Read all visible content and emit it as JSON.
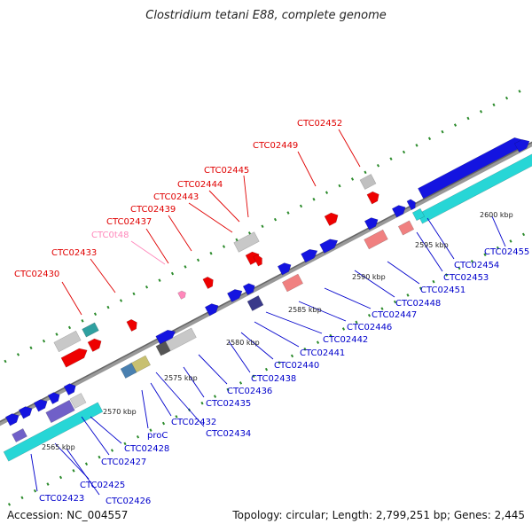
{
  "title": "Clostridium tetani E88, complete genome",
  "footer": {
    "accession": "Accession: NC_004557",
    "summary": "Topology: circular; Length: 2,799,251 bp; Genes: 2,445"
  },
  "colors": {
    "top_label": "#e00000",
    "trna_label": "#ff88bb",
    "bottom_label": "#0000cc"
  },
  "scale_labels": [
    "2565 kbp",
    "2570 kbp",
    "2575 kbp",
    "2580 kbp",
    "2585 kbp",
    "2590 kbp",
    "2595 kbp",
    "2600 kbp"
  ],
  "top_genes": [
    "CTC02430",
    "CTC02433",
    "CTC02437",
    "CTC0t48",
    "CTC02439",
    "CTC02443",
    "CTC02444",
    "CTC02445",
    "CTC02449",
    "CTC02452"
  ],
  "bottom_genes": [
    "CTC02423",
    "CTC02426",
    "CTC02425",
    "CTC02427",
    "CTC02428",
    "proC",
    "CTC02432",
    "CTC02434",
    "CTC02435",
    "CTC02436",
    "CTC02438",
    "CTC02440",
    "CTC02441",
    "CTC02442",
    "CTC02446",
    "CTC02447",
    "CTC02448",
    "CTC02451",
    "CTC02453",
    "CTC02454",
    "CTC02455"
  ]
}
